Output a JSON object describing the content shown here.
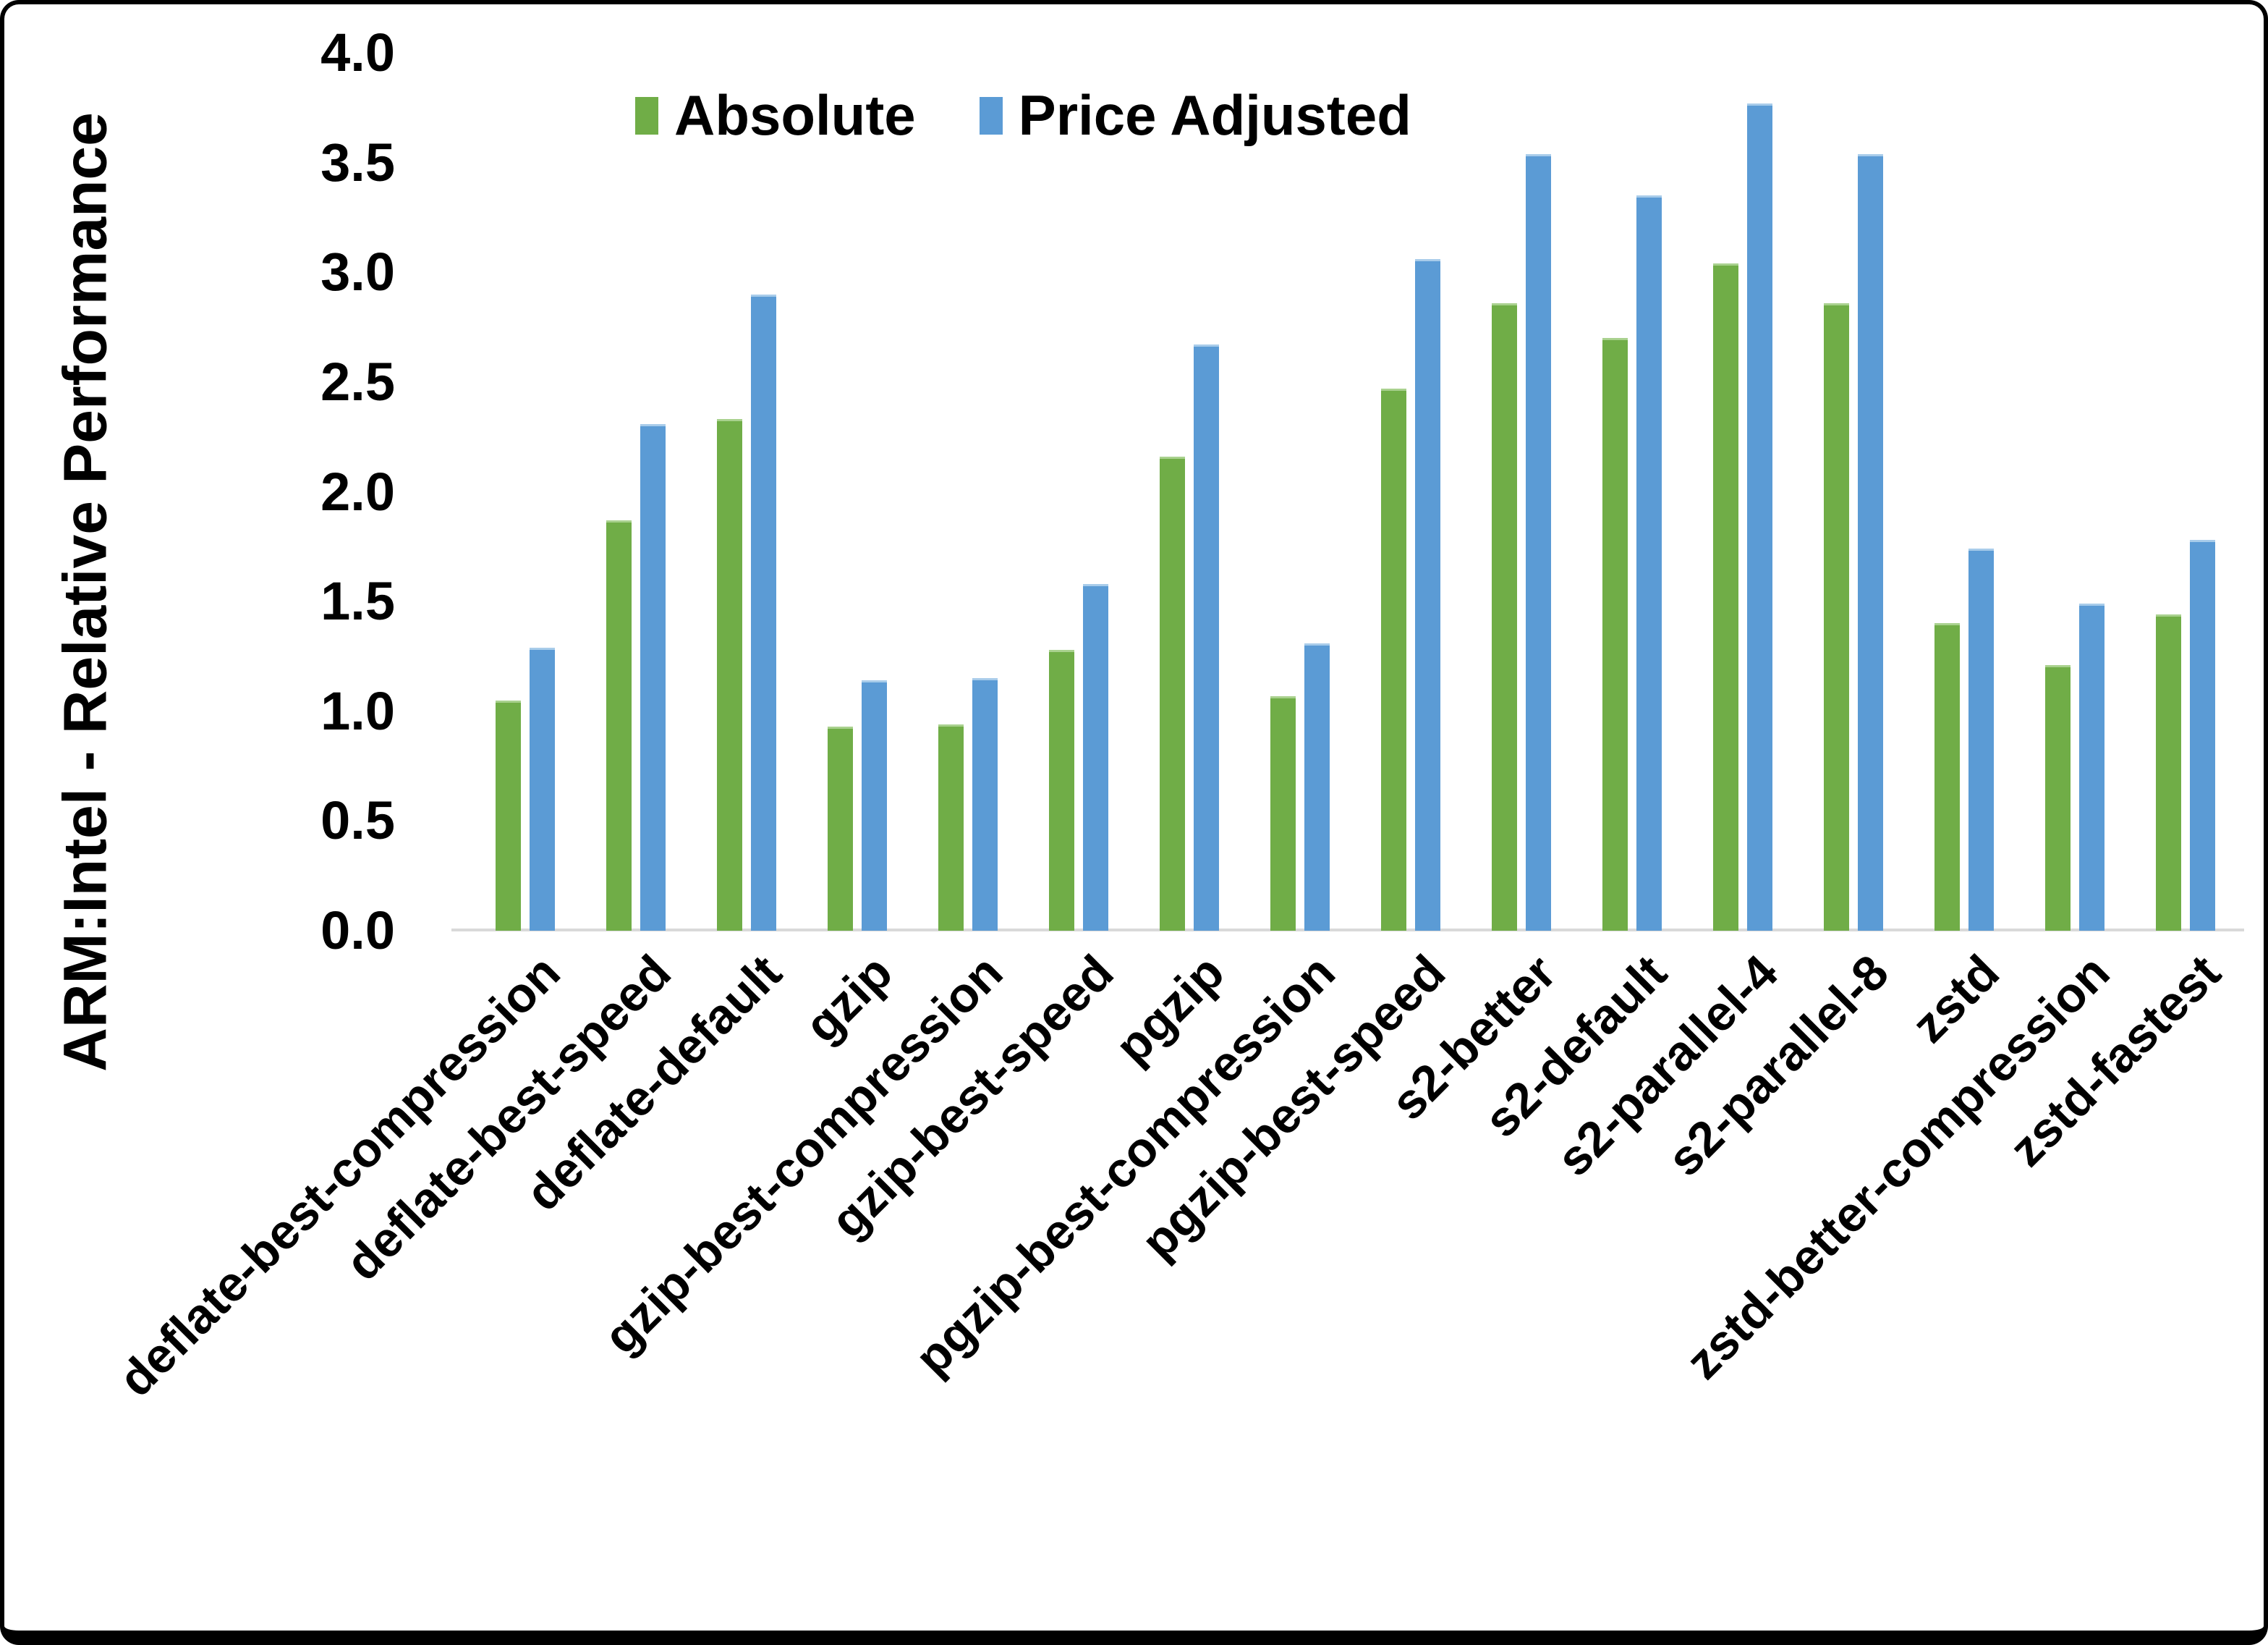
{
  "chart_data": {
    "type": "bar",
    "title": "",
    "ylabel": "ARM:Intel - Relative Performance",
    "xlabel": "",
    "ylim": [
      0.0,
      4.0
    ],
    "yticks": [
      0.0,
      0.5,
      1.0,
      1.5,
      2.0,
      2.5,
      3.0,
      3.5,
      4.0
    ],
    "ytick_format": "one-decimal",
    "grid": "off",
    "legend_position": "top-center-inside",
    "categories": [
      "deflate-best-compression",
      "deflate-best-speed",
      "deflate-default",
      "gzip",
      "gzip-best-compression",
      "gzip-best-speed",
      "pgzip",
      "pgzip-best-compression",
      "pgzip-best-speed",
      "s2-better",
      "s2-default",
      "s2-parallel-4",
      "s2-parallel-8",
      "zstd",
      "zstd-better-compression",
      "zstd-fastest"
    ],
    "series": [
      {
        "name": "Absolute",
        "color": "#70AD47",
        "edge_color": "#A9D18E",
        "values": [
          1.05,
          1.87,
          2.33,
          0.93,
          0.94,
          1.28,
          2.16,
          1.07,
          2.47,
          2.86,
          2.7,
          3.04,
          2.86,
          1.4,
          1.21,
          1.44
        ]
      },
      {
        "name": "Price Adjusted",
        "color": "#5B9BD5",
        "edge_color": "#A8CCEA",
        "values": [
          1.29,
          2.31,
          2.9,
          1.14,
          1.15,
          1.58,
          2.67,
          1.31,
          3.06,
          3.54,
          3.35,
          3.77,
          3.54,
          1.74,
          1.49,
          1.78
        ]
      }
    ],
    "axis_line_color": "#D9D9D9",
    "text_color": "#000000",
    "background_color": "#FFFFFF"
  }
}
